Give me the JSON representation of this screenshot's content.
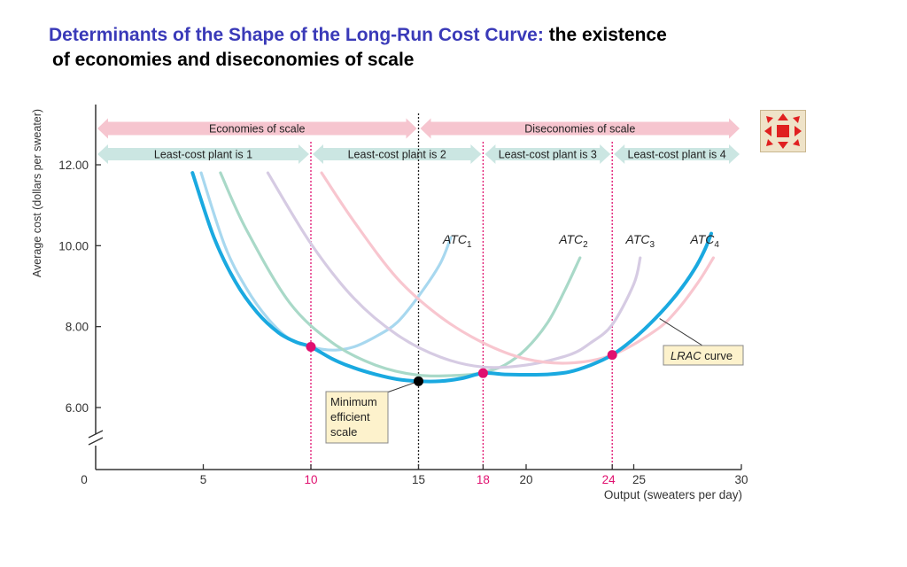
{
  "title": {
    "accent": "Determinants of the Shape of the Long-Run Cost Curve:",
    "line1_rest": " the existence",
    "line2": "of economies and diseconomies of scale"
  },
  "colors": {
    "lrac": "#1aa9e0",
    "atc1": "#a8d8ef",
    "atc2": "#a9d9c8",
    "atc3": "#d6cbe3",
    "atc4": "#f8c6cf",
    "pink_band": "#f6c5cf",
    "teal_band": "#cbe6e2",
    "pink_marker": "#e0106f",
    "pink_dotted": "#e0106f",
    "label_box": "#fdf2cc",
    "accent_title": "#3a3ab8",
    "button_icon": "#e02020"
  },
  "icons": {
    "expand_button": "expand-arrows-icon"
  },
  "chart_data": {
    "type": "line",
    "xlabel": "Output (sweaters per day)",
    "ylabel": "Average cost (dollars per sweater)",
    "xlim": [
      0,
      30
    ],
    "ylim": [
      5,
      13.5
    ],
    "x_ticks": [
      {
        "value": 0,
        "label": "0",
        "highlight": false
      },
      {
        "value": 5,
        "label": "5",
        "highlight": false
      },
      {
        "value": 10,
        "label": "10",
        "highlight": true
      },
      {
        "value": 15,
        "label": "15",
        "highlight": false
      },
      {
        "value": 18,
        "label": "18",
        "highlight": true
      },
      {
        "value": 20,
        "label": "20",
        "highlight": false
      },
      {
        "value": 24,
        "label": "24",
        "highlight": true
      },
      {
        "value": 25,
        "label": "25",
        "highlight": false
      },
      {
        "value": 30,
        "label": "30",
        "highlight": false
      }
    ],
    "y_ticks": [
      {
        "value": 12,
        "label": "12.00"
      },
      {
        "value": 10,
        "label": "10.00"
      },
      {
        "value": 8,
        "label": "8.00"
      },
      {
        "value": 6,
        "label": "6.00"
      }
    ],
    "axis_break": true,
    "series": [
      {
        "name": "ATC",
        "sub": "1",
        "key": "atc1",
        "x": [
          4.9,
          6,
          7,
          8,
          9,
          10,
          11,
          12,
          13,
          14,
          15,
          16,
          16.5
        ],
        "y": [
          11.8,
          10.0,
          8.95,
          8.2,
          7.7,
          7.5,
          7.42,
          7.5,
          7.75,
          8.1,
          8.75,
          9.55,
          10.2
        ]
      },
      {
        "name": "ATC",
        "sub": "2",
        "key": "atc2",
        "x": [
          5.8,
          7,
          9,
          11,
          13,
          15,
          17,
          18,
          19,
          20,
          21,
          21.8,
          22.5
        ],
        "y": [
          11.8,
          10.4,
          8.6,
          7.6,
          7.05,
          6.8,
          6.8,
          6.87,
          7.05,
          7.45,
          8.1,
          8.9,
          9.7
        ]
      },
      {
        "name": "ATC",
        "sub": "3",
        "key": "atc3",
        "x": [
          8,
          10,
          12,
          14,
          16,
          18,
          20,
          22,
          23,
          24,
          25,
          25.3
        ],
        "y": [
          11.8,
          10.05,
          8.7,
          7.8,
          7.25,
          7.0,
          7.05,
          7.3,
          7.6,
          8.05,
          9.05,
          9.7
        ]
      },
      {
        "name": "ATC",
        "sub": "4",
        "key": "atc4",
        "x": [
          10.5,
          12,
          14,
          16,
          18,
          20,
          22,
          24,
          26,
          27,
          28,
          28.7
        ],
        "y": [
          11.8,
          10.6,
          9.2,
          8.25,
          7.6,
          7.2,
          7.1,
          7.3,
          7.9,
          8.4,
          9.1,
          9.7
        ]
      },
      {
        "name": "LRAC curve",
        "key": "lrac",
        "x": [
          4.5,
          5.5,
          6.5,
          7.5,
          8.5,
          9.3,
          10,
          11,
          12,
          13,
          14,
          15,
          16,
          17,
          18,
          19,
          20,
          21,
          22,
          23,
          24,
          25,
          26,
          27,
          27.8,
          28.3,
          28.6
        ],
        "y": [
          11.8,
          10.2,
          9.1,
          8.35,
          7.85,
          7.62,
          7.5,
          7.2,
          6.98,
          6.82,
          6.7,
          6.65,
          6.65,
          6.72,
          6.85,
          6.82,
          6.81,
          6.82,
          6.88,
          7.05,
          7.3,
          7.7,
          8.2,
          8.8,
          9.4,
          9.9,
          10.3
        ]
      }
    ],
    "series_labels": [
      {
        "key": "atc1",
        "text": "ATC",
        "sub": "1",
        "x": 16.8,
        "y": 10.05
      },
      {
        "key": "atc2",
        "text": "ATC",
        "sub": "2",
        "x": 22.2,
        "y": 10.05
      },
      {
        "key": "atc3",
        "text": "ATC",
        "sub": "3",
        "x": 25.3,
        "y": 10.05
      },
      {
        "key": "atc4",
        "text": "ATC",
        "sub": "4",
        "x": 28.3,
        "y": 10.05
      }
    ],
    "key_points": [
      {
        "x": 10,
        "y": 7.5,
        "color": "pink_marker"
      },
      {
        "x": 15,
        "y": 6.65,
        "color": "black"
      },
      {
        "x": 18,
        "y": 6.85,
        "color": "pink_marker"
      },
      {
        "x": 24,
        "y": 7.3,
        "color": "pink_marker"
      }
    ],
    "vertical_lines": [
      {
        "x": 10,
        "style": "pink"
      },
      {
        "x": 15,
        "style": "black"
      },
      {
        "x": 18,
        "style": "pink"
      },
      {
        "x": 24,
        "style": "pink"
      }
    ],
    "scale_bands": [
      {
        "label": "Economies of scale",
        "from": 0,
        "to": 15,
        "color": "pink_band",
        "row": 1
      },
      {
        "label": "Diseconomies of scale",
        "from": 15,
        "to": 30,
        "color": "pink_band",
        "row": 1
      },
      {
        "label": "Least-cost plant is 1",
        "from": 0,
        "to": 10,
        "color": "teal_band",
        "row": 2
      },
      {
        "label": "Least-cost plant is 2",
        "from": 10,
        "to": 18,
        "color": "teal_band",
        "row": 2
      },
      {
        "label": "Least-cost plant is 3",
        "from": 18,
        "to": 24,
        "color": "teal_band",
        "row": 2
      },
      {
        "label": "Least-cost plant is 4",
        "from": 24,
        "to": 30,
        "color": "teal_band",
        "row": 2
      }
    ],
    "annotations": [
      {
        "name": "minimum-efficient-scale",
        "lines": [
          "Minimum",
          "efficient",
          "scale"
        ],
        "point_x": 15,
        "point_y": 6.65
      },
      {
        "name": "lrac-curve",
        "lines": [
          "LRAC curve"
        ],
        "italic_part": "LRAC",
        "point_x": 26.2,
        "point_y": 8.2
      }
    ],
    "grid": false,
    "legend": "none"
  }
}
